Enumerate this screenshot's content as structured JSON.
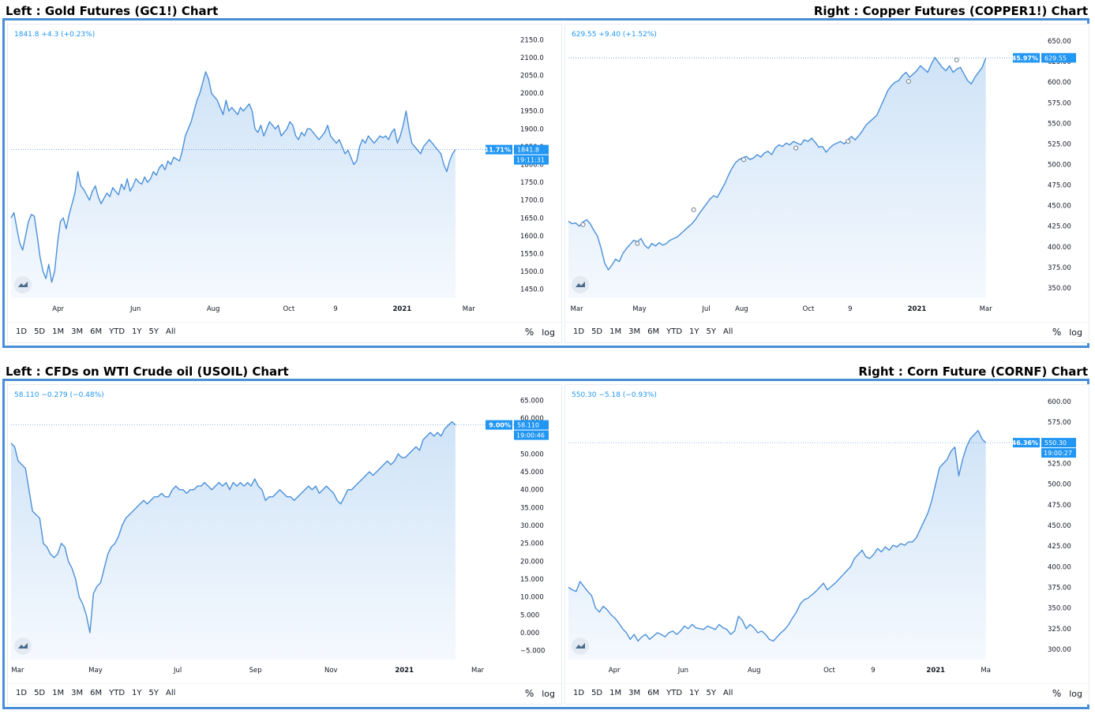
{
  "headers": [
    {
      "left": "Left : Gold Futures (GC1!) Chart",
      "right": "Right : Copper Futures (COPPER1!) Chart"
    },
    {
      "left": "Left : CFDs on WTI Crude oil (USOIL) Chart",
      "right": "Right : Corn Future (CORNF) Chart"
    }
  ],
  "toolbar": {
    "ranges": [
      "1D",
      "5D",
      "1M",
      "3M",
      "6M",
      "YTD",
      "1Y",
      "5Y",
      "All"
    ],
    "percent_label": "%",
    "log_label": "log"
  },
  "colors": {
    "line": "#4a90d9",
    "fill_top": "#cfe3f7",
    "fill_bottom": "#f5f9fe",
    "badge": "#2196f3",
    "frame": "#4a8fd6"
  },
  "icons": [
    "tradingview-logo-icon"
  ],
  "chart_data": [
    {
      "type": "area",
      "name": "gold",
      "quote": "1841.8  +4.3 (+0.23%)",
      "ylim": [
        1425,
        2175
      ],
      "yticks": [
        "2150.0",
        "2100.0",
        "2050.0",
        "2000.0",
        "1950.0",
        "1900.0",
        "1850.0",
        "1800.0",
        "1750.0",
        "1700.0",
        "1650.0",
        "1600.0",
        "1550.0",
        "1500.0",
        "1450.0"
      ],
      "xticks": [
        [
          "Apr",
          0.106
        ],
        [
          "Jun",
          0.28
        ],
        [
          "Aug",
          0.455
        ],
        [
          "Oct",
          0.625
        ],
        [
          "9",
          0.73
        ],
        [
          "2021",
          0.88
        ],
        [
          "Mar",
          1.03
        ]
      ],
      "pct_label": "11.71%",
      "price_label": "1841.8",
      "time_label": "19:11:31",
      "last": 1841.8,
      "has_time": true,
      "markers": [],
      "values": [
        1650,
        1665,
        1620,
        1580,
        1560,
        1600,
        1640,
        1660,
        1655,
        1600,
        1540,
        1500,
        1480,
        1520,
        1470,
        1500,
        1580,
        1640,
        1650,
        1620,
        1660,
        1690,
        1720,
        1780,
        1740,
        1730,
        1715,
        1700,
        1725,
        1740,
        1710,
        1690,
        1705,
        1720,
        1710,
        1735,
        1725,
        1715,
        1745,
        1730,
        1760,
        1725,
        1740,
        1760,
        1750,
        1745,
        1765,
        1750,
        1760,
        1780,
        1770,
        1790,
        1800,
        1785,
        1810,
        1800,
        1820,
        1815,
        1810,
        1840,
        1880,
        1900,
        1920,
        1950,
        1980,
        2000,
        2030,
        2060,
        2040,
        2000,
        1990,
        1980,
        1960,
        1940,
        1980,
        1950,
        1960,
        1950,
        1940,
        1960,
        1950,
        1960,
        1970,
        1950,
        1900,
        1890,
        1910,
        1880,
        1900,
        1920,
        1910,
        1900,
        1910,
        1880,
        1890,
        1900,
        1920,
        1910,
        1880,
        1870,
        1890,
        1880,
        1900,
        1900,
        1890,
        1880,
        1870,
        1880,
        1890,
        1910,
        1880,
        1870,
        1860,
        1870,
        1850,
        1830,
        1840,
        1820,
        1800,
        1810,
        1850,
        1870,
        1860,
        1880,
        1870,
        1860,
        1870,
        1880,
        1875,
        1880,
        1870,
        1890,
        1900,
        1860,
        1880,
        1910,
        1950,
        1900,
        1860,
        1850,
        1840,
        1830,
        1850,
        1860,
        1870,
        1860,
        1850,
        1840,
        1830,
        1800,
        1780,
        1810,
        1830,
        1841.8
      ]
    },
    {
      "type": "area",
      "name": "copper",
      "quote": "629.55  +9.40 (+1.52%)",
      "ylim": [
        337.5,
        662.5
      ],
      "yticks": [
        "650.00",
        "625.00",
        "600.00",
        "575.00",
        "550.00",
        "525.00",
        "500.00",
        "475.00",
        "450.00",
        "425.00",
        "400.00",
        "375.00",
        "350.00"
      ],
      "xticks": [
        [
          "Mar",
          0.02
        ],
        [
          "May",
          0.17
        ],
        [
          "Jul",
          0.33
        ],
        [
          "Aug",
          0.415
        ],
        [
          "Oct",
          0.575
        ],
        [
          "9",
          0.675
        ],
        [
          "2021",
          0.835
        ],
        [
          "Mar",
          1.0
        ]
      ],
      "pct_label": "45.97%",
      "price_label": "629.55",
      "time_label": "",
      "last": 629.55,
      "has_time": false,
      "markers": [
        [
          0.035,
          427
        ],
        [
          0.165,
          404
        ],
        [
          0.3,
          445
        ],
        [
          0.42,
          506
        ],
        [
          0.545,
          520
        ],
        [
          0.67,
          528
        ],
        [
          0.815,
          601
        ],
        [
          0.93,
          627
        ]
      ],
      "values": [
        431,
        428,
        429,
        425,
        430,
        433,
        428,
        420,
        413,
        398,
        380,
        372,
        378,
        385,
        382,
        392,
        398,
        403,
        408,
        406,
        410,
        402,
        398,
        404,
        401,
        405,
        402,
        404,
        408,
        410,
        412,
        416,
        420,
        424,
        428,
        433,
        440,
        446,
        452,
        458,
        462,
        460,
        468,
        476,
        486,
        495,
        502,
        506,
        508,
        510,
        506,
        508,
        512,
        509,
        514,
        516,
        512,
        520,
        524,
        522,
        526,
        524,
        528,
        526,
        524,
        530,
        528,
        532,
        527,
        521,
        522,
        515,
        520,
        524,
        526,
        528,
        525,
        530,
        534,
        530,
        535,
        541,
        548,
        552,
        556,
        560,
        570,
        580,
        590,
        596,
        600,
        602,
        608,
        612,
        606,
        610,
        614,
        620,
        616,
        612,
        622,
        630,
        624,
        618,
        614,
        620,
        612,
        616,
        618,
        610,
        602,
        598,
        606,
        612,
        618,
        629.55
      ]
    },
    {
      "type": "area",
      "name": "oil",
      "quote": "58.110  −0.279 (−0.48%)",
      "ylim": [
        -7.5,
        67.5
      ],
      "yticks": [
        "65.000",
        "60.000",
        "55.000",
        "50.000",
        "45.000",
        "40.000",
        "35.000",
        "30.000",
        "25.000",
        "20.000",
        "15.000",
        "10.000",
        "5.000",
        "0.000",
        "−5.000"
      ],
      "xticks": [
        [
          "Mar",
          0.015
        ],
        [
          "May",
          0.19
        ],
        [
          "Jul",
          0.375
        ],
        [
          "Sep",
          0.55
        ],
        [
          "Nov",
          0.72
        ],
        [
          "2021",
          0.885
        ],
        [
          "Mar",
          1.05
        ]
      ],
      "pct_label": "9.00%",
      "price_label": "58.110",
      "time_label": "19:00:46",
      "last": 58.11,
      "has_time": true,
      "markers": [],
      "values": [
        53,
        52,
        48,
        47,
        46,
        40,
        34,
        33,
        32,
        25,
        24,
        22,
        21,
        22,
        25,
        24,
        20,
        18,
        15,
        10,
        8,
        5,
        0,
        11,
        13,
        14,
        18,
        22,
        24,
        25,
        27,
        30,
        32,
        33,
        34,
        35,
        36,
        37,
        36,
        37,
        38,
        38,
        39,
        38,
        38,
        40,
        41,
        40,
        40,
        39,
        40,
        40,
        41,
        41,
        42,
        41,
        40,
        41,
        42,
        41,
        42,
        40,
        42,
        41,
        42,
        41,
        42,
        41,
        43,
        41,
        40,
        37,
        38,
        38,
        39,
        40,
        39,
        38,
        38,
        37,
        38,
        39,
        40,
        41,
        40,
        41,
        39,
        40,
        41,
        40,
        39,
        37,
        36,
        38,
        40,
        40,
        41,
        42,
        43,
        44,
        45,
        44,
        45,
        46,
        47,
        48,
        47,
        48,
        50,
        49,
        49,
        50,
        51,
        52,
        51,
        54,
        55,
        56,
        55,
        56,
        55,
        57,
        58,
        59,
        58.11
      ]
    },
    {
      "type": "area",
      "name": "corn",
      "quote": "550.30  −5.18 (−0.93%)",
      "ylim": [
        287.5,
        612.5
      ],
      "yticks": [
        "600.00",
        "575.00",
        "550.00",
        "525.00",
        "500.00",
        "475.00",
        "450.00",
        "425.00",
        "400.00",
        "375.00",
        "350.00",
        "325.00",
        "300.00"
      ],
      "xticks": [
        [
          "Apr",
          0.11
        ],
        [
          "Jun",
          0.275
        ],
        [
          "Aug",
          0.445
        ],
        [
          "Oct",
          0.625
        ],
        [
          "9",
          0.73
        ],
        [
          "2021",
          0.88
        ],
        [
          "Ma",
          1.0
        ]
      ],
      "pct_label": "46.36%",
      "price_label": "550.30",
      "time_label": "19:00:27",
      "last": 550.3,
      "has_time": true,
      "markers": [],
      "values": [
        375,
        372,
        370,
        382,
        376,
        370,
        365,
        350,
        345,
        352,
        348,
        342,
        338,
        332,
        325,
        320,
        312,
        318,
        310,
        315,
        318,
        312,
        316,
        320,
        318,
        315,
        320,
        322,
        318,
        322,
        328,
        325,
        330,
        326,
        325,
        324,
        328,
        326,
        324,
        330,
        326,
        324,
        318,
        322,
        340,
        335,
        325,
        330,
        326,
        320,
        322,
        318,
        312,
        310,
        315,
        320,
        324,
        330,
        338,
        345,
        355,
        360,
        362,
        366,
        370,
        375,
        380,
        372,
        376,
        380,
        385,
        390,
        395,
        400,
        410,
        415,
        420,
        412,
        410,
        415,
        422,
        418,
        424,
        420,
        426,
        424,
        428,
        426,
        430,
        430,
        435,
        445,
        455,
        465,
        480,
        500,
        520,
        525,
        530,
        540,
        545,
        510,
        530,
        545,
        555,
        560,
        565,
        555,
        550.3
      ]
    }
  ]
}
